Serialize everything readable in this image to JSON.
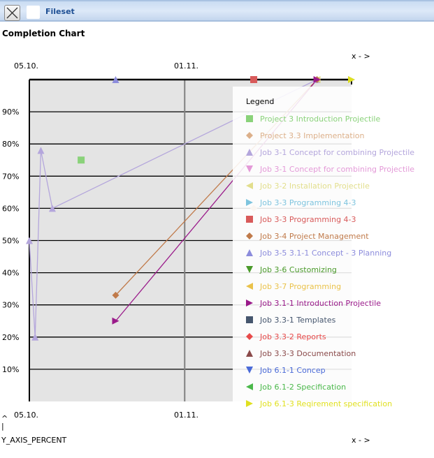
{
  "toolbar": {
    "title": "Fileset",
    "close_icon": "close-x-icon"
  },
  "chart_data": {
    "type": "scatter",
    "title": "Completion Chart",
    "ylabel": "Y_AXIS_PERCENT",
    "ylabel_arrow": "^",
    "ylabel_bar": "|",
    "xlabel": "x - >",
    "x_ticks": [
      "05.10.",
      "01.11."
    ],
    "xlim": [
      "05.10.",
      "30.11."
    ],
    "y_ticks": [
      "10%",
      "20%",
      "30%",
      "40%",
      "50%",
      "60%",
      "70%",
      "80%",
      "90%"
    ],
    "ylim": [
      0,
      100
    ],
    "grid": "horizontal",
    "legend": {
      "title": "Legend",
      "placement": "right"
    },
    "series": [
      {
        "name": "Project 3 Introduction Projectile",
        "color": "#8ad27a",
        "marker": "square",
        "line": false,
        "points": [
          [
            "14.10.",
            75
          ]
        ]
      },
      {
        "name": "Project 3.3 Implementation",
        "color": "#dcb08a",
        "marker": "diamond",
        "line": false,
        "points": [
          [
            "13.11.",
            60
          ]
        ]
      },
      {
        "name": "Job 3-1 Concept for combining Projectile",
        "color": "#b4a6dc",
        "marker": "up",
        "line": true,
        "points": [
          [
            "05.10.",
            50
          ],
          [
            "06.10.",
            20
          ],
          [
            "07.10.",
            78
          ],
          [
            "09.10.",
            60
          ],
          [
            "24.11.",
            100
          ]
        ]
      },
      {
        "name": "Job 3-1 Concept for combining Projectile",
        "color": "#e49ad8",
        "marker": "down",
        "line": false,
        "points": []
      },
      {
        "name": "Job 3-2 Installation  Projectile",
        "color": "#e2de8c",
        "marker": "left",
        "line": false,
        "points": [
          [
            "24.11.",
            100
          ]
        ]
      },
      {
        "name": "Job 3-3 Programming 4-3",
        "color": "#7ec4de",
        "marker": "right",
        "line": false,
        "points": [
          [
            "30.11.",
            100
          ]
        ]
      },
      {
        "name": "Job 3-3 Programming 4-3",
        "color": "#d85a5a",
        "marker": "square",
        "line": false,
        "points": [
          [
            "13.11.",
            100
          ]
        ]
      },
      {
        "name": "Job 3-4 Project Management",
        "color": "#c07a4a",
        "marker": "diamond",
        "line": true,
        "points": [
          [
            "20.10.",
            33
          ],
          [
            "24.11.",
            100
          ]
        ]
      },
      {
        "name": "Job 3-5 3.1-1 Concept - 3 Planning",
        "color": "#8c8cdc",
        "marker": "up",
        "line": false,
        "points": [
          [
            "20.10.",
            100
          ]
        ]
      },
      {
        "name": "Job 3-6 Customizing",
        "color": "#4a9a2a",
        "marker": "down",
        "line": false,
        "points": []
      },
      {
        "name": "Job 3-7 Programming",
        "color": "#eac24a",
        "marker": "left",
        "line": false,
        "points": []
      },
      {
        "name": "Job 3.1-1 Introduction Projectile",
        "color": "#9a1a8a",
        "marker": "right",
        "line": true,
        "points": [
          [
            "20.10.",
            25
          ],
          [
            "24.11.",
            100
          ]
        ]
      },
      {
        "name": "Job 3.3-1 Templates",
        "color": "#46566e",
        "marker": "square",
        "line": false,
        "points": []
      },
      {
        "name": "Job 3.3-2 Reports",
        "color": "#e84a4a",
        "marker": "diamond",
        "line": false,
        "points": []
      },
      {
        "name": "Job 3.3-3 Documentation",
        "color": "#8a4a4a",
        "marker": "up",
        "line": false,
        "points": []
      },
      {
        "name": "Job 6.1-1 Concep",
        "color": "#4a6ad8",
        "marker": "down",
        "line": false,
        "points": []
      },
      {
        "name": "Job 6.1-2 Specification",
        "color": "#4ab84a",
        "marker": "left",
        "line": false,
        "points": []
      },
      {
        "name": "Job 6.1-3 Reqirement specification",
        "color": "#e0e020",
        "marker": "right",
        "line": false,
        "points": [
          [
            "30.11.",
            100
          ]
        ]
      }
    ]
  }
}
